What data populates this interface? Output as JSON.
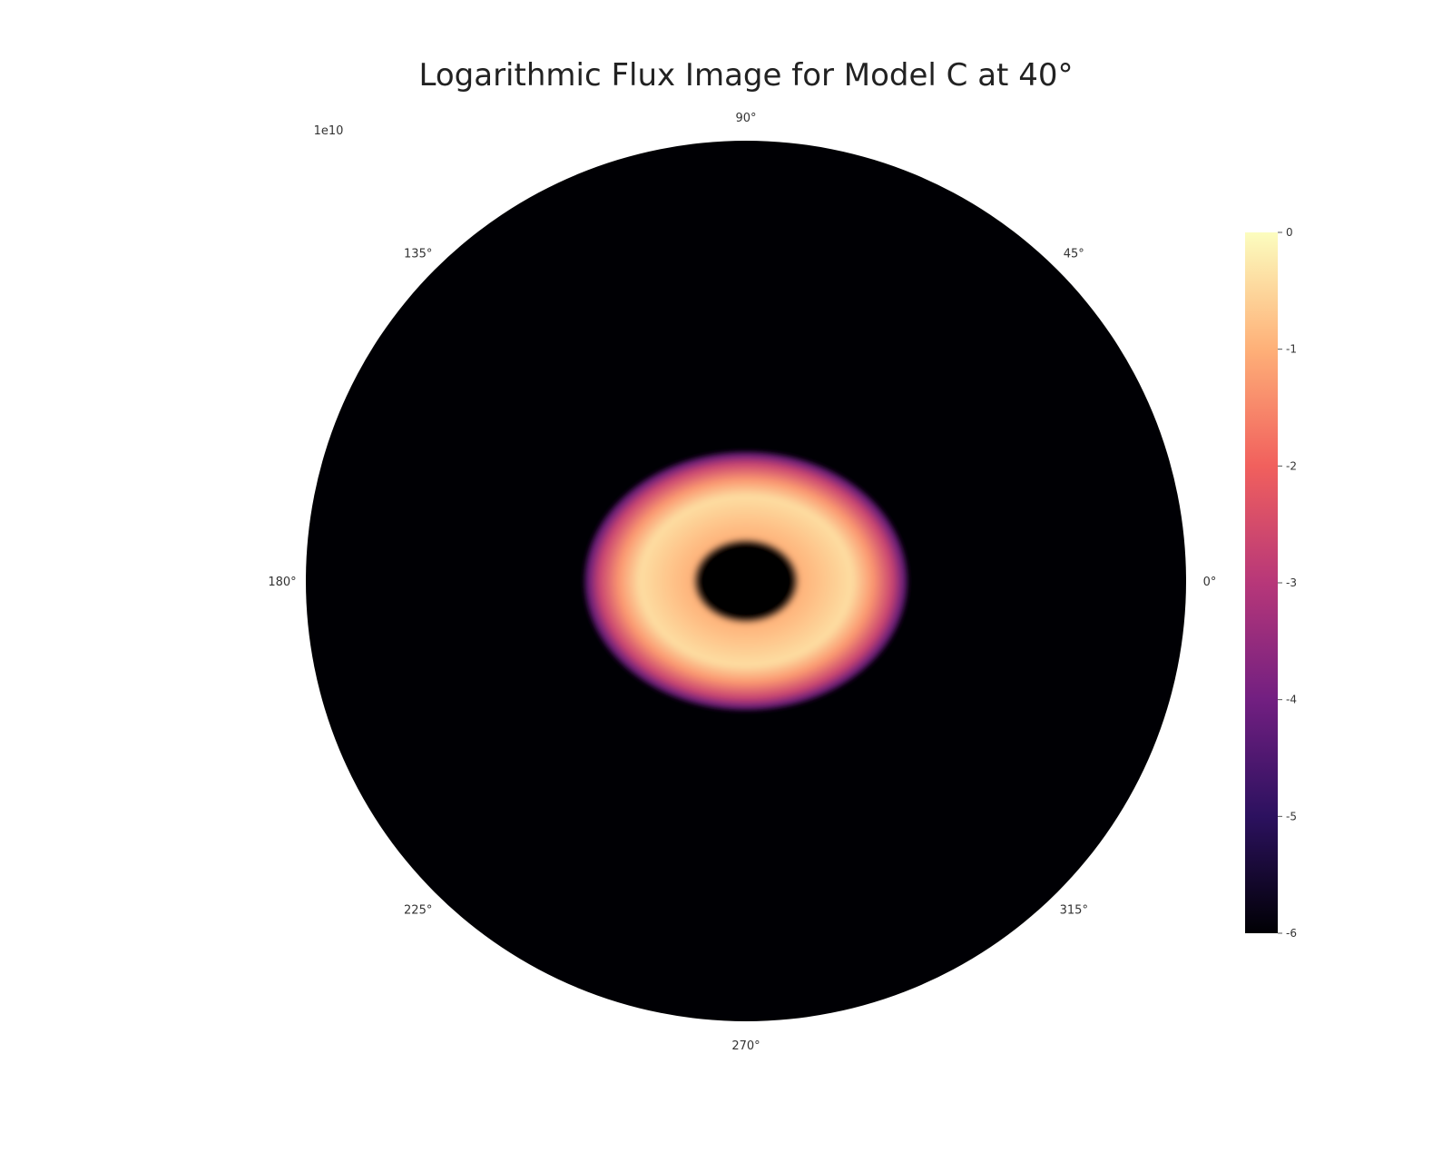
{
  "chart_data": {
    "type": "heatmap",
    "projection": "polar",
    "title": "Logarithmic Flux Image for Model C at 40°",
    "corner_label": "1e10",
    "angular_ticks": [
      "0°",
      "45°",
      "90°",
      "135°",
      "180°",
      "225°",
      "270°",
      "315°"
    ],
    "colormap": "magma",
    "colormap_stops": [
      "#000004",
      "#2c115f",
      "#721f81",
      "#b73779",
      "#f1605d",
      "#feb078",
      "#fcfdbf"
    ],
    "background_color": "#000004",
    "grid": false,
    "colorbar": {
      "position": "right",
      "ticks": [
        "-6",
        "-5",
        "-4",
        "-3",
        "-2",
        "-1",
        "0"
      ]
    },
    "emission_ring": {
      "inner_radius_fraction": 0.11,
      "peak_radius_fraction": 0.24,
      "outer_radius_fraction": 0.37,
      "vertical_compression": 0.8,
      "peak_level": 0.93,
      "edge_level": 0.3
    }
  }
}
